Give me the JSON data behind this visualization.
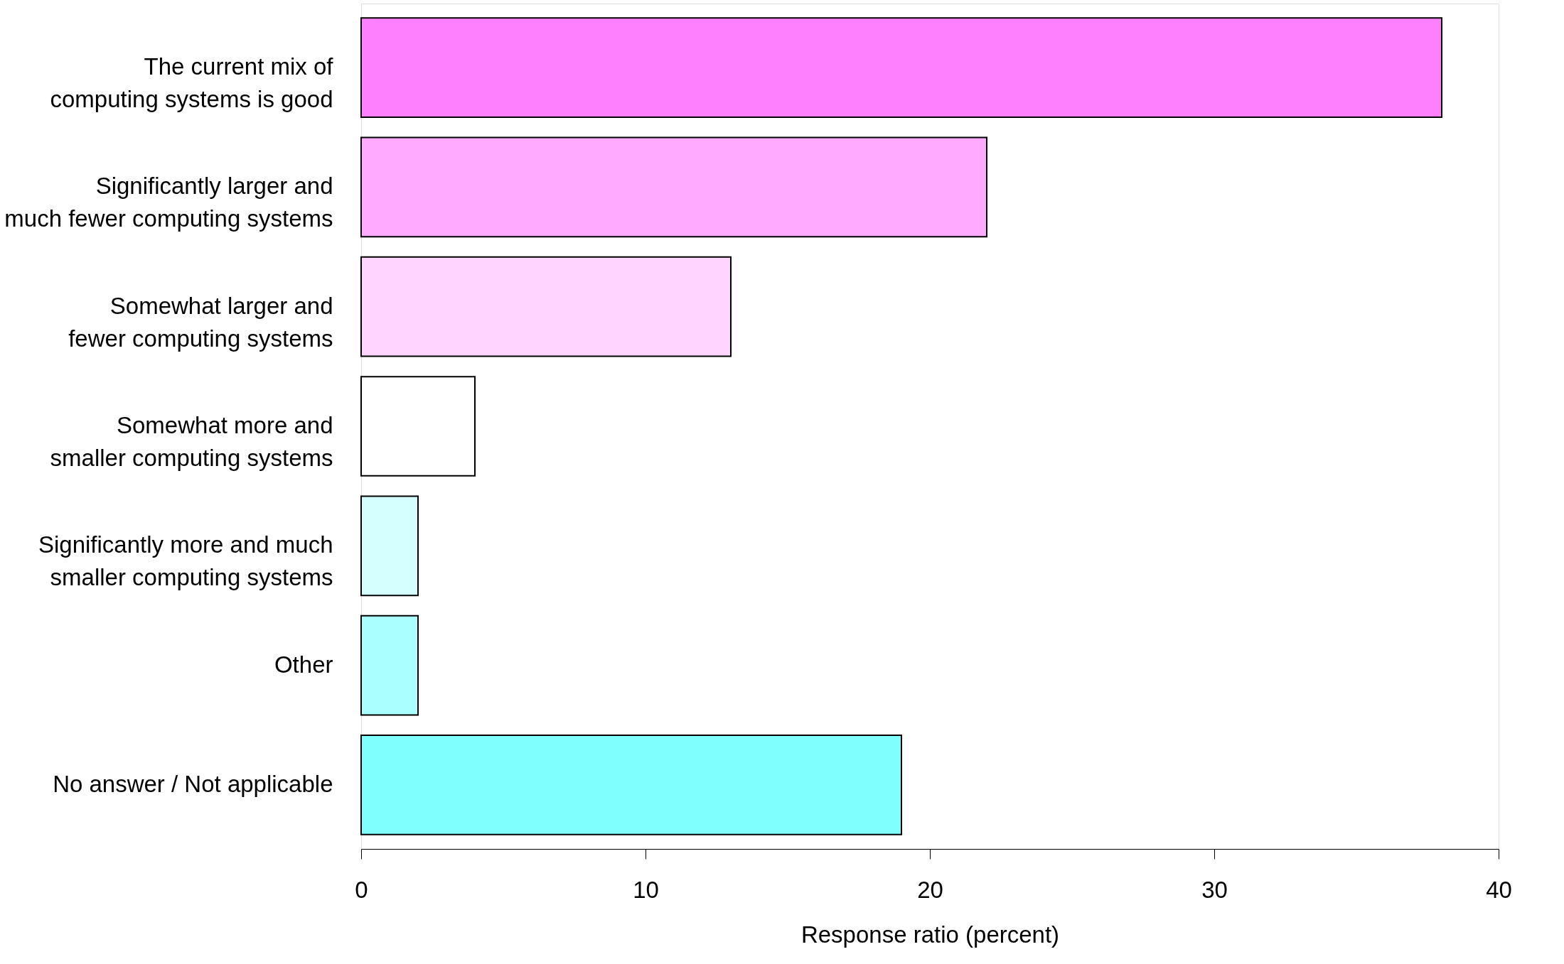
{
  "chart_data": {
    "type": "bar",
    "orientation": "horizontal",
    "categories": [
      "The current mix of\ncomputing systems is good",
      "Significantly larger and\nmuch fewer computing systems",
      "Somewhat larger and\nfewer computing systems",
      "Somewhat more and\nsmaller computing systems",
      "Significantly more and much\nsmaller computing systems",
      "Other",
      "No answer / Not applicable"
    ],
    "values": [
      38,
      22,
      13,
      4,
      2,
      2,
      19
    ],
    "colors": [
      "#ff80ff",
      "#ffaaff",
      "#ffd5ff",
      "#ffffff",
      "#d5ffff",
      "#aaffff",
      "#80ffff"
    ],
    "xlim": [
      0,
      40
    ],
    "xticks": [
      0,
      10,
      20,
      30,
      40
    ],
    "xlabel": "Response ratio (percent)",
    "grid": false
  }
}
